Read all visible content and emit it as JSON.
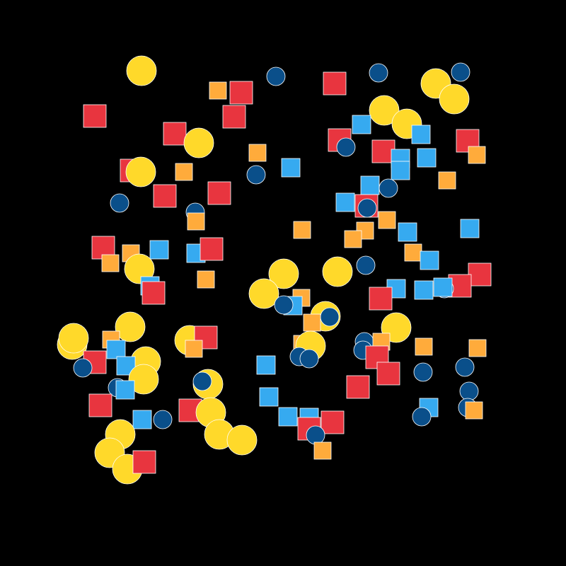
{
  "colors": {
    "background": "#000000",
    "outline": "#ffffff",
    "red": "#e8353f",
    "orange": "#ffab3b",
    "sky": "#36aaf0",
    "navy": "#0a4f8a",
    "yellow": "#ffd92a"
  }
}
